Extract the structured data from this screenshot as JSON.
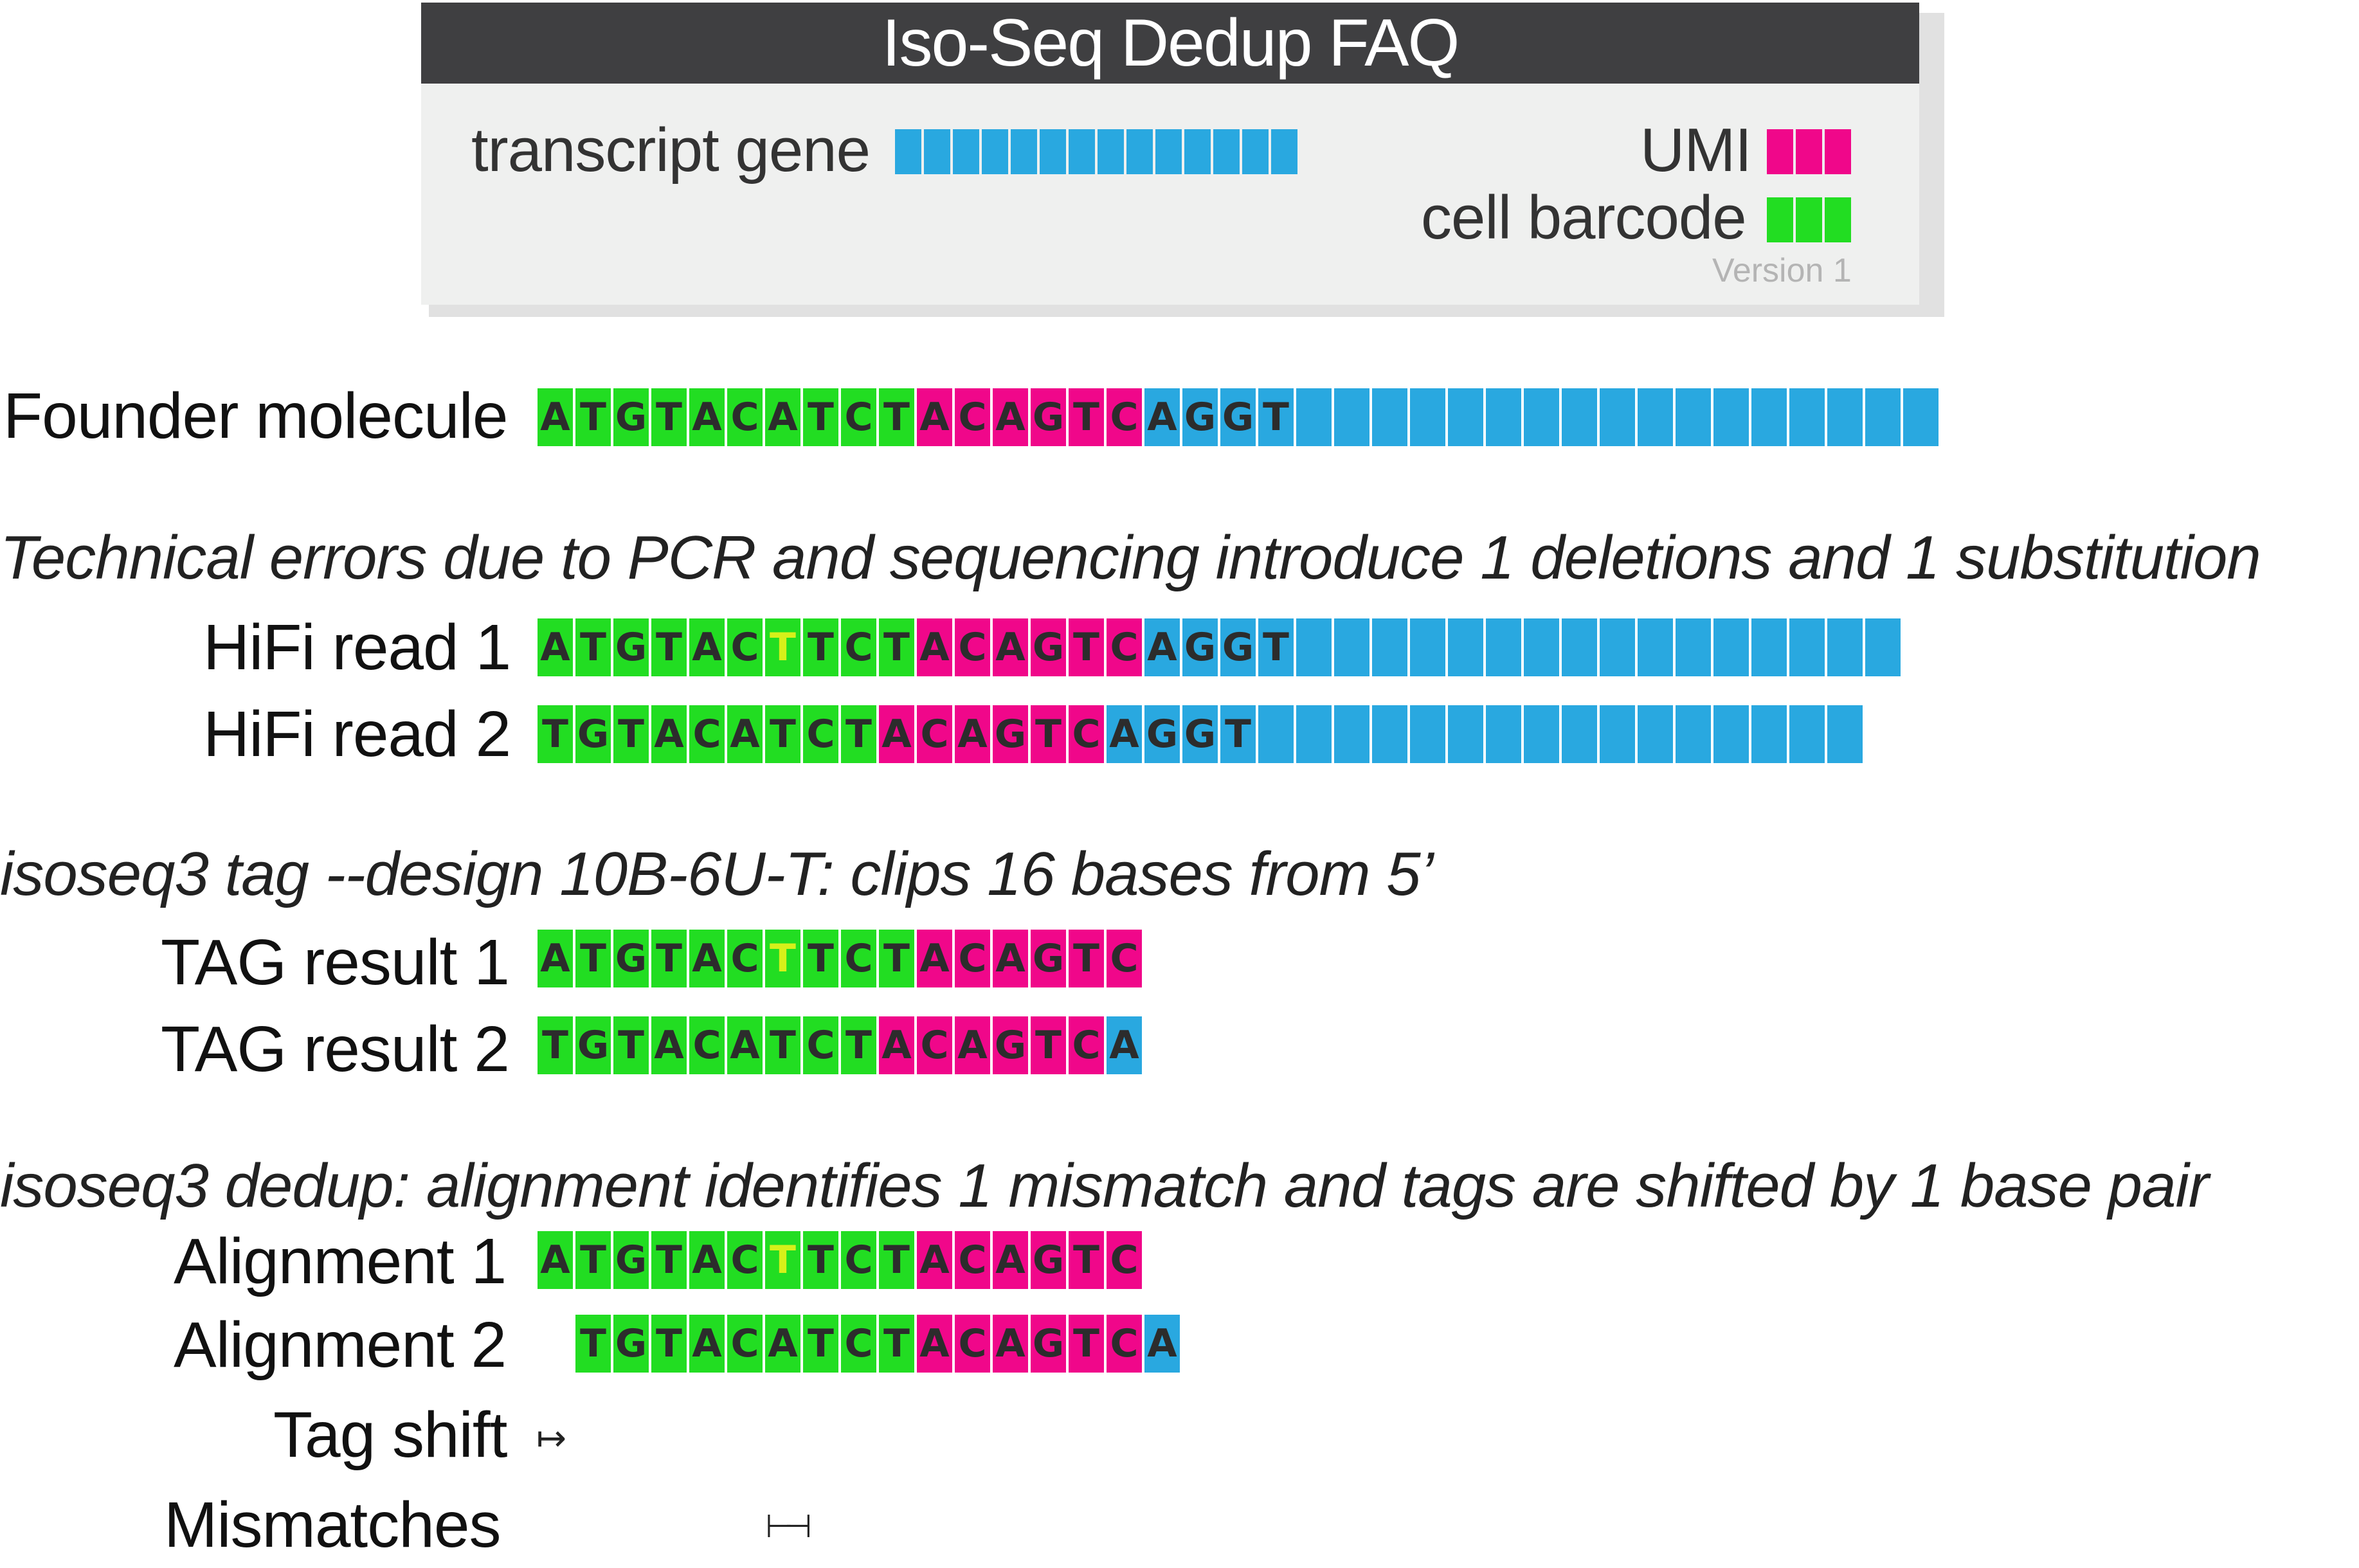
{
  "legend": {
    "title": "Iso-Seq Dedup FAQ",
    "transcript_gene_label": "transcript gene",
    "umi_label": "UMI",
    "cell_barcode_label": "cell barcode",
    "version": "Version 1",
    "colors": {
      "cell_barcode": "#22dd22",
      "umi": "#f0078a",
      "gene": "#29a8e0",
      "error_base": "#d6f01a"
    }
  },
  "founder": {
    "label": "Founder molecule",
    "bases": "ATGTACATCTACAGTCAGGT",
    "types": "CCCCCCCCCCUUUUUUGGGG",
    "gene_blocks": 17
  },
  "section_errors": {
    "title": "Technical errors due to PCR and sequencing introduce 1 deletions and 1 substitution",
    "reads": [
      {
        "label": "HiFi read 1",
        "bases": "ATGTACTTCTACAGTCAGGT",
        "types": "CCCCCCCCCCUUUUUUGGGG",
        "error_index": 6,
        "gene_blocks": 16
      },
      {
        "label": "HiFi read 2",
        "bases": "TGTACATCTACAGTCAGGT",
        "types": "CCCCCCCCCUUUUUUGGGG",
        "error_index": -1,
        "gene_blocks": 16
      }
    ]
  },
  "section_tag": {
    "title": "isoseq3 tag --design 10B-6U-T: clips 16 bases from 5’",
    "results": [
      {
        "label": "TAG result 1",
        "bases": "ATGTACTTCTACAGTC",
        "types": "CCCCCCCCCCUUUUUU",
        "error_index": 6
      },
      {
        "label": "TAG result 2",
        "bases": "TGTACATCTACAGTCA",
        "types": "CCCCCCCCCUUUUUUG",
        "error_index": -1
      }
    ]
  },
  "section_dedup": {
    "title": "isoseq3 dedup: alignment identifies 1 mismatch and tags are shifted by 1 base pair",
    "alignments": [
      {
        "label": "Alignment 1",
        "bases": "ATGTACTTCTACAGTC",
        "types": "CCCCCCCCCCUUUUUU",
        "error_index": 6
      },
      {
        "label": "Alignment 2",
        "bases": "TGTACATCTACAGTCA",
        "types": "CCCCCCCCCUUUUUUG",
        "error_index": -1
      }
    ],
    "tag_shift_label": "Tag shift",
    "tag_shift_symbol": "↦",
    "mismatches_label": "Mismatches",
    "mismatch_symbol": "⊢⊣"
  }
}
